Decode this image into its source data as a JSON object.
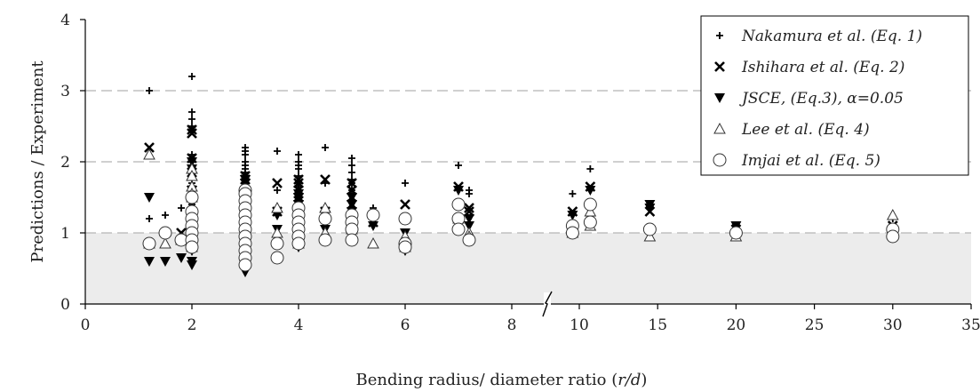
{
  "chart_data": {
    "type": "scatter",
    "title": "",
    "xlabel_prefix": "Bending radius/ diameter ratio (",
    "xlabel_var": "r/d",
    "xlabel_suffix": ")",
    "ylabel": "Predictions / Experiment",
    "ylim": [
      0,
      4
    ],
    "yticks": [
      "0",
      "1",
      "2",
      "3",
      "4"
    ],
    "xticks": [
      "0",
      "2",
      "4",
      "6",
      "8",
      "10",
      "15",
      "20",
      "25",
      "30",
      "35"
    ],
    "axis_break_between": [
      "8",
      "10"
    ],
    "grid": "horizontal dashed",
    "shaded_band": [
      0,
      1
    ],
    "legend_position": "top-right",
    "series": [
      {
        "name": "Nakamura et al. (Eq. 1)",
        "marker": "plus",
        "points": [
          [
            1.2,
            3.0
          ],
          [
            1.2,
            1.2
          ],
          [
            1.5,
            1.25
          ],
          [
            1.8,
            1.35
          ],
          [
            2.0,
            3.2
          ],
          [
            2.0,
            2.7
          ],
          [
            2.0,
            2.6
          ],
          [
            2.0,
            2.5
          ],
          [
            2.0,
            2.45
          ],
          [
            2.0,
            2.1
          ],
          [
            2.0,
            1.95
          ],
          [
            2.0,
            1.8
          ],
          [
            2.0,
            1.7
          ],
          [
            2.0,
            1.6
          ],
          [
            2.0,
            1.4
          ],
          [
            2.0,
            1.3
          ],
          [
            2.0,
            1.2
          ],
          [
            3.0,
            2.2
          ],
          [
            3.0,
            2.15
          ],
          [
            3.0,
            2.1
          ],
          [
            3.0,
            2.0
          ],
          [
            3.0,
            1.95
          ],
          [
            3.0,
            1.9
          ],
          [
            3.0,
            1.85
          ],
          [
            3.0,
            1.8
          ],
          [
            3.0,
            1.75
          ],
          [
            3.0,
            1.7
          ],
          [
            3.0,
            1.6
          ],
          [
            3.0,
            1.5
          ],
          [
            3.0,
            1.45
          ],
          [
            3.0,
            1.4
          ],
          [
            3.0,
            1.3
          ],
          [
            3.0,
            1.2
          ],
          [
            3.0,
            1.1
          ],
          [
            3.0,
            1.0
          ],
          [
            3.6,
            2.15
          ],
          [
            3.6,
            1.6
          ],
          [
            3.6,
            1.3
          ],
          [
            4.0,
            2.1
          ],
          [
            4.0,
            2.0
          ],
          [
            4.0,
            1.95
          ],
          [
            4.0,
            1.9
          ],
          [
            4.0,
            1.8
          ],
          [
            4.0,
            1.7
          ],
          [
            4.0,
            1.65
          ],
          [
            4.0,
            1.6
          ],
          [
            4.0,
            1.55
          ],
          [
            4.0,
            1.5
          ],
          [
            4.0,
            1.45
          ],
          [
            4.0,
            1.4
          ],
          [
            4.0,
            1.3
          ],
          [
            4.5,
            2.2
          ],
          [
            4.5,
            1.7
          ],
          [
            5.0,
            2.05
          ],
          [
            5.0,
            1.95
          ],
          [
            5.0,
            1.85
          ],
          [
            5.0,
            1.75
          ],
          [
            5.0,
            1.7
          ],
          [
            5.0,
            1.6
          ],
          [
            5.4,
            1.35
          ],
          [
            6.0,
            1.7
          ],
          [
            7.0,
            1.95
          ],
          [
            7.2,
            1.6
          ],
          [
            7.2,
            1.55
          ],
          [
            9.8,
            1.55
          ],
          [
            10.7,
            1.9
          ],
          [
            14.5,
            1.4
          ],
          [
            20,
            1.1
          ],
          [
            30,
            1.2
          ]
        ]
      },
      {
        "name": "Ishihara et al. (Eq. 2)",
        "marker": "cross",
        "points": [
          [
            1.2,
            2.2
          ],
          [
            1.8,
            1.0
          ],
          [
            2.0,
            2.45
          ],
          [
            2.0,
            2.4
          ],
          [
            2.0,
            2.05
          ],
          [
            2.0,
            1.85
          ],
          [
            2.0,
            1.8
          ],
          [
            2.0,
            1.6
          ],
          [
            2.0,
            1.5
          ],
          [
            2.0,
            1.3
          ],
          [
            3.0,
            1.8
          ],
          [
            3.0,
            1.75
          ],
          [
            3.0,
            1.7
          ],
          [
            3.0,
            1.6
          ],
          [
            3.0,
            1.5
          ],
          [
            3.0,
            1.4
          ],
          [
            3.0,
            1.3
          ],
          [
            3.0,
            1.2
          ],
          [
            3.0,
            1.1
          ],
          [
            3.0,
            1.0
          ],
          [
            3.6,
            1.7
          ],
          [
            3.6,
            1.3
          ],
          [
            4.0,
            1.75
          ],
          [
            4.0,
            1.7
          ],
          [
            4.0,
            1.6
          ],
          [
            4.0,
            1.5
          ],
          [
            4.0,
            1.45
          ],
          [
            4.0,
            1.4
          ],
          [
            4.0,
            1.3
          ],
          [
            4.5,
            1.75
          ],
          [
            4.5,
            1.3
          ],
          [
            5.0,
            1.7
          ],
          [
            5.0,
            1.6
          ],
          [
            5.0,
            1.5
          ],
          [
            5.0,
            1.4
          ],
          [
            5.4,
            1.15
          ],
          [
            6.0,
            1.4
          ],
          [
            7.0,
            1.65
          ],
          [
            7.2,
            1.35
          ],
          [
            7.2,
            1.3
          ],
          [
            9.8,
            1.3
          ],
          [
            10.7,
            1.65
          ],
          [
            14.5,
            1.3
          ],
          [
            20,
            1.05
          ],
          [
            30,
            1.1
          ]
        ]
      },
      {
        "name": "JSCE, (Eq.3), α=0.05",
        "marker": "triangle-down",
        "points": [
          [
            1.2,
            1.5
          ],
          [
            1.2,
            0.6
          ],
          [
            1.5,
            0.6
          ],
          [
            1.8,
            0.65
          ],
          [
            2.0,
            2.0
          ],
          [
            2.0,
            1.9
          ],
          [
            2.0,
            1.6
          ],
          [
            2.0,
            1.3
          ],
          [
            2.0,
            1.1
          ],
          [
            2.0,
            0.9
          ],
          [
            2.0,
            0.75
          ],
          [
            2.0,
            0.6
          ],
          [
            2.0,
            0.55
          ],
          [
            3.0,
            1.75
          ],
          [
            3.0,
            1.7
          ],
          [
            3.0,
            1.6
          ],
          [
            3.0,
            1.5
          ],
          [
            3.0,
            1.4
          ],
          [
            3.0,
            1.3
          ],
          [
            3.0,
            1.2
          ],
          [
            3.0,
            1.1
          ],
          [
            3.0,
            1.0
          ],
          [
            3.0,
            0.9
          ],
          [
            3.0,
            0.8
          ],
          [
            3.0,
            0.7
          ],
          [
            3.0,
            0.6
          ],
          [
            3.0,
            0.5
          ],
          [
            3.0,
            0.45
          ],
          [
            3.6,
            1.25
          ],
          [
            3.6,
            1.05
          ],
          [
            4.0,
            1.55
          ],
          [
            4.0,
            1.5
          ],
          [
            4.0,
            1.4
          ],
          [
            4.0,
            1.3
          ],
          [
            4.0,
            1.2
          ],
          [
            4.0,
            1.1
          ],
          [
            4.0,
            1.0
          ],
          [
            4.0,
            0.9
          ],
          [
            4.0,
            0.8
          ],
          [
            4.5,
            1.25
          ],
          [
            4.5,
            1.05
          ],
          [
            5.0,
            1.5
          ],
          [
            5.0,
            1.4
          ],
          [
            5.0,
            1.3
          ],
          [
            5.0,
            1.2
          ],
          [
            5.0,
            1.1
          ],
          [
            5.0,
            1.0
          ],
          [
            5.4,
            1.1
          ],
          [
            6.0,
            1.0
          ],
          [
            6.0,
            0.85
          ],
          [
            6.0,
            0.75
          ],
          [
            7.0,
            1.6
          ],
          [
            7.2,
            1.2
          ],
          [
            7.2,
            1.1
          ],
          [
            9.8,
            1.25
          ],
          [
            10.7,
            1.6
          ],
          [
            14.5,
            1.4
          ],
          [
            14.5,
            1.35
          ],
          [
            20,
            1.1
          ],
          [
            30,
            1.0
          ]
        ]
      },
      {
        "name": "Lee et al. (Eq. 4)",
        "marker": "triangle-up",
        "points": [
          [
            1.2,
            2.1
          ],
          [
            1.2,
            0.85
          ],
          [
            1.5,
            0.85
          ],
          [
            1.8,
            0.9
          ],
          [
            2.0,
            1.9
          ],
          [
            2.0,
            1.8
          ],
          [
            2.0,
            1.65
          ],
          [
            2.0,
            1.55
          ],
          [
            2.0,
            1.5
          ],
          [
            2.0,
            1.3
          ],
          [
            2.0,
            1.15
          ],
          [
            2.0,
            1.0
          ],
          [
            2.0,
            0.9
          ],
          [
            2.0,
            0.8
          ],
          [
            3.0,
            1.6
          ],
          [
            3.0,
            1.5
          ],
          [
            3.0,
            1.4
          ],
          [
            3.0,
            1.3
          ],
          [
            3.0,
            1.2
          ],
          [
            3.0,
            1.1
          ],
          [
            3.0,
            1.0
          ],
          [
            3.0,
            0.9
          ],
          [
            3.0,
            0.8
          ],
          [
            3.0,
            0.7
          ],
          [
            3.0,
            0.6
          ],
          [
            3.6,
            1.35
          ],
          [
            3.6,
            1.0
          ],
          [
            4.0,
            1.35
          ],
          [
            4.0,
            1.25
          ],
          [
            4.0,
            1.15
          ],
          [
            4.0,
            1.05
          ],
          [
            4.0,
            0.95
          ],
          [
            4.0,
            0.85
          ],
          [
            4.5,
            1.35
          ],
          [
            4.5,
            1.0
          ],
          [
            5.0,
            1.25
          ],
          [
            5.0,
            1.15
          ],
          [
            5.0,
            1.05
          ],
          [
            5.0,
            0.95
          ],
          [
            5.4,
            0.85
          ],
          [
            6.0,
            0.95
          ],
          [
            6.0,
            0.8
          ],
          [
            7.0,
            1.2
          ],
          [
            7.2,
            1.0
          ],
          [
            7.2,
            0.95
          ],
          [
            9.8,
            1.0
          ],
          [
            10.7,
            1.3
          ],
          [
            10.7,
            1.1
          ],
          [
            14.5,
            0.95
          ],
          [
            20,
            0.95
          ],
          [
            30,
            1.25
          ]
        ]
      },
      {
        "name": "Imjai et al. (Eq. 5)",
        "marker": "circle",
        "points": [
          [
            1.2,
            0.85
          ],
          [
            1.5,
            1.0
          ],
          [
            1.8,
            0.9
          ],
          [
            2.0,
            1.5
          ],
          [
            2.0,
            1.3
          ],
          [
            2.0,
            1.2
          ],
          [
            2.0,
            1.1
          ],
          [
            2.0,
            1.0
          ],
          [
            2.0,
            0.9
          ],
          [
            2.0,
            0.8
          ],
          [
            3.0,
            1.6
          ],
          [
            3.0,
            1.55
          ],
          [
            3.0,
            1.45
          ],
          [
            3.0,
            1.35
          ],
          [
            3.0,
            1.25
          ],
          [
            3.0,
            1.15
          ],
          [
            3.0,
            1.05
          ],
          [
            3.0,
            0.95
          ],
          [
            3.0,
            0.85
          ],
          [
            3.0,
            0.75
          ],
          [
            3.0,
            0.65
          ],
          [
            3.0,
            0.55
          ],
          [
            3.6,
            0.85
          ],
          [
            3.6,
            0.65
          ],
          [
            4.0,
            1.35
          ],
          [
            4.0,
            1.25
          ],
          [
            4.0,
            1.15
          ],
          [
            4.0,
            1.05
          ],
          [
            4.0,
            0.95
          ],
          [
            4.0,
            0.85
          ],
          [
            4.5,
            1.2
          ],
          [
            4.5,
            0.9
          ],
          [
            5.0,
            1.25
          ],
          [
            5.0,
            1.15
          ],
          [
            5.0,
            1.05
          ],
          [
            5.0,
            0.9
          ],
          [
            5.4,
            1.25
          ],
          [
            6.0,
            1.2
          ],
          [
            6.0,
            0.85
          ],
          [
            6.0,
            0.8
          ],
          [
            7.0,
            1.4
          ],
          [
            7.0,
            1.2
          ],
          [
            7.0,
            1.05
          ],
          [
            7.2,
            0.9
          ],
          [
            9.8,
            1.1
          ],
          [
            9.8,
            1.0
          ],
          [
            10.7,
            1.4
          ],
          [
            10.7,
            1.15
          ],
          [
            14.5,
            1.05
          ],
          [
            20,
            1.0
          ],
          [
            30,
            1.05
          ],
          [
            30,
            0.95
          ]
        ]
      }
    ]
  }
}
